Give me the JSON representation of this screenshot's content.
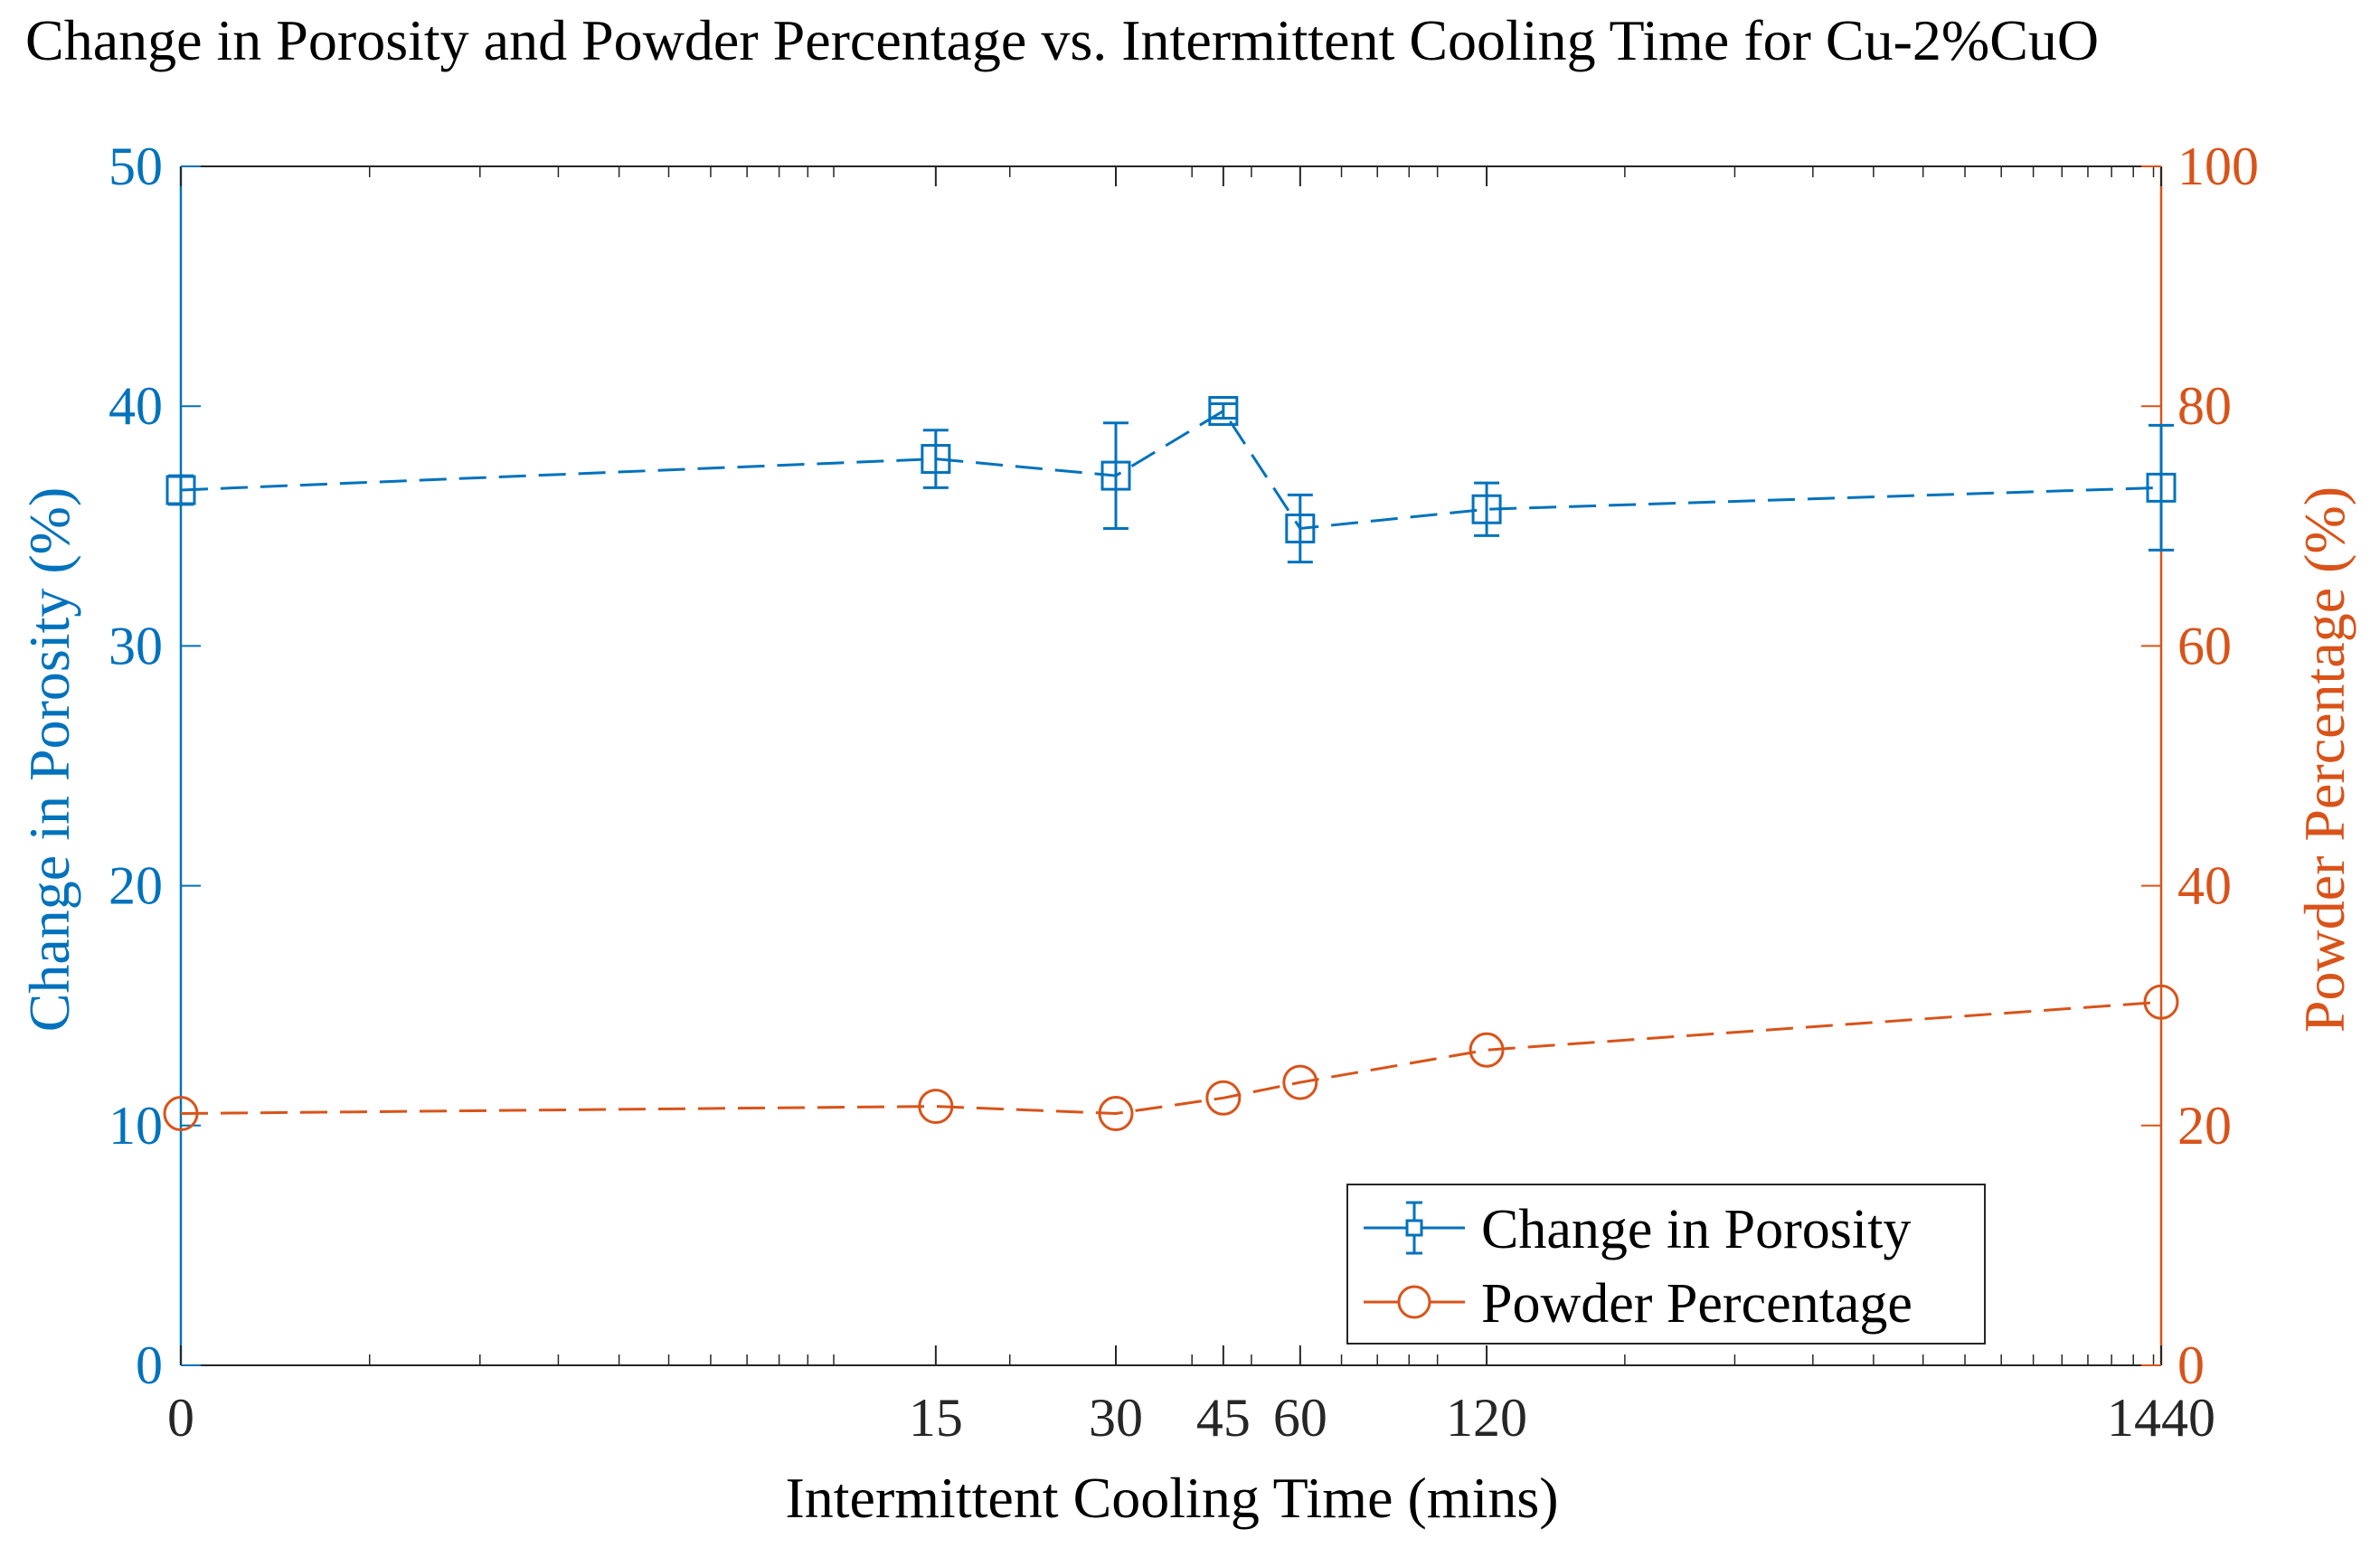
{
  "chart_data": {
    "type": "line",
    "title": "Change in Porosity and Powder Percentage vs. Intermittent Cooling Time for Cu-2%CuO",
    "xlabel": "Intermittent Cooling Time (mins)",
    "x_scale": "log(1+x)",
    "x_ticks": [
      0,
      15,
      30,
      45,
      60,
      120,
      1440
    ],
    "x_tick_labels": [
      "0",
      "15",
      "30",
      "45",
      "60",
      "120",
      "1440"
    ],
    "x": [
      0,
      15,
      30,
      45,
      60,
      120,
      1440
    ],
    "left_axis": {
      "label": "Change in Porosity (%)",
      "ylim": [
        0,
        50
      ],
      "ticks": [
        0,
        10,
        20,
        30,
        40,
        50
      ],
      "tick_labels": [
        "0",
        "10",
        "20",
        "30",
        "40",
        "50"
      ],
      "color": "#0072BD"
    },
    "right_axis": {
      "label": "Powder Percentage (%)",
      "ylim": [
        0,
        100
      ],
      "ticks": [
        0,
        20,
        40,
        60,
        80,
        100
      ],
      "tick_labels": [
        "0",
        "20",
        "40",
        "60",
        "80",
        "100"
      ],
      "color": "#D95319"
    },
    "series": [
      {
        "name": "Change in Porosity",
        "axis": "left",
        "marker": "square",
        "line_style": "dashed",
        "color": "#0072BD",
        "values": [
          36.5,
          37.8,
          37.1,
          39.8,
          34.9,
          35.7,
          36.6
        ],
        "error": [
          0.6,
          1.2,
          2.2,
          0.3,
          1.4,
          1.1,
          2.6
        ]
      },
      {
        "name": "Powder Percentage",
        "axis": "right",
        "marker": "circle",
        "line_style": "dashed",
        "color": "#D95319",
        "values": [
          21.0,
          21.6,
          21.0,
          22.3,
          23.6,
          26.3,
          30.3
        ]
      }
    ],
    "legend_position": "bottom-right",
    "grid": false
  }
}
